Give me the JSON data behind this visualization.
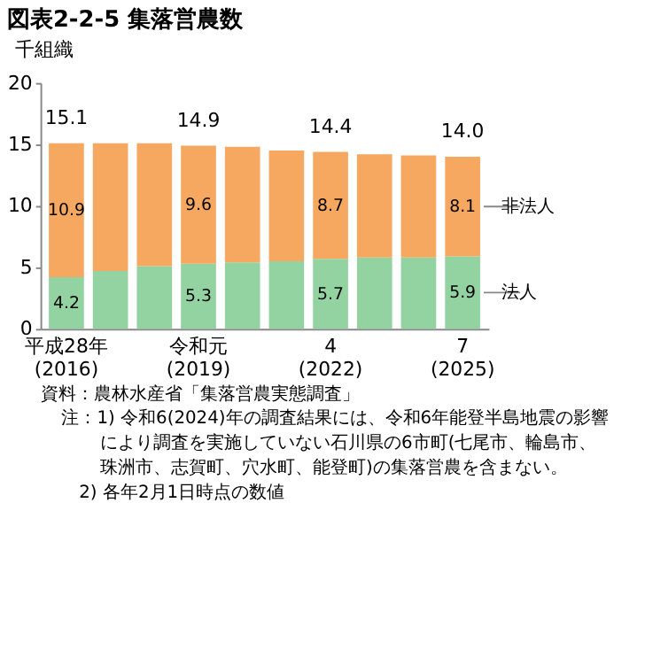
{
  "chart_data": {
    "type": "bar",
    "stacked": true,
    "title": "図表2-2-5 集落営農数",
    "ylabel": "千組織",
    "categories": [
      "平成28年\n(2016)",
      null,
      null,
      "令和元\n(2019)",
      null,
      null,
      "4\n(2022)",
      null,
      null,
      "7\n(2025)"
    ],
    "series": [
      {
        "name": "法人",
        "color": "#93d3a2",
        "values": [
          4.2,
          4.7,
          5.1,
          5.3,
          5.4,
          5.5,
          5.7,
          5.8,
          5.8,
          5.9
        ],
        "value_labels": [
          "4.2",
          null,
          null,
          "5.3",
          null,
          null,
          "5.7",
          null,
          null,
          "5.9"
        ]
      },
      {
        "name": "非法人",
        "color": "#f6a860",
        "values": [
          10.9,
          10.4,
          10.0,
          9.6,
          9.4,
          9.0,
          8.7,
          8.4,
          8.3,
          8.1
        ],
        "value_labels": [
          "10.9",
          null,
          null,
          "9.6",
          null,
          null,
          "8.7",
          null,
          null,
          "8.1"
        ]
      }
    ],
    "totals": [
      "15.1",
      null,
      null,
      "14.9",
      null,
      null,
      "14.4",
      null,
      null,
      "14.0"
    ],
    "ylim": [
      0,
      20
    ],
    "yticks": [
      0,
      5,
      10,
      15,
      20
    ],
    "grid": false,
    "annotations": [
      "資料：農林水産省「集落営農実態調査」",
      "注：1) 令和6(2024)年の調査結果には、令和6年能登半島地震の影響により調査を実施していない石川県の6市町(七尾市、輪島市、珠洲市、志賀町、穴水町、能登町)の集落営農を含まない。",
      "2) 各年2月1日時点の数値"
    ]
  }
}
